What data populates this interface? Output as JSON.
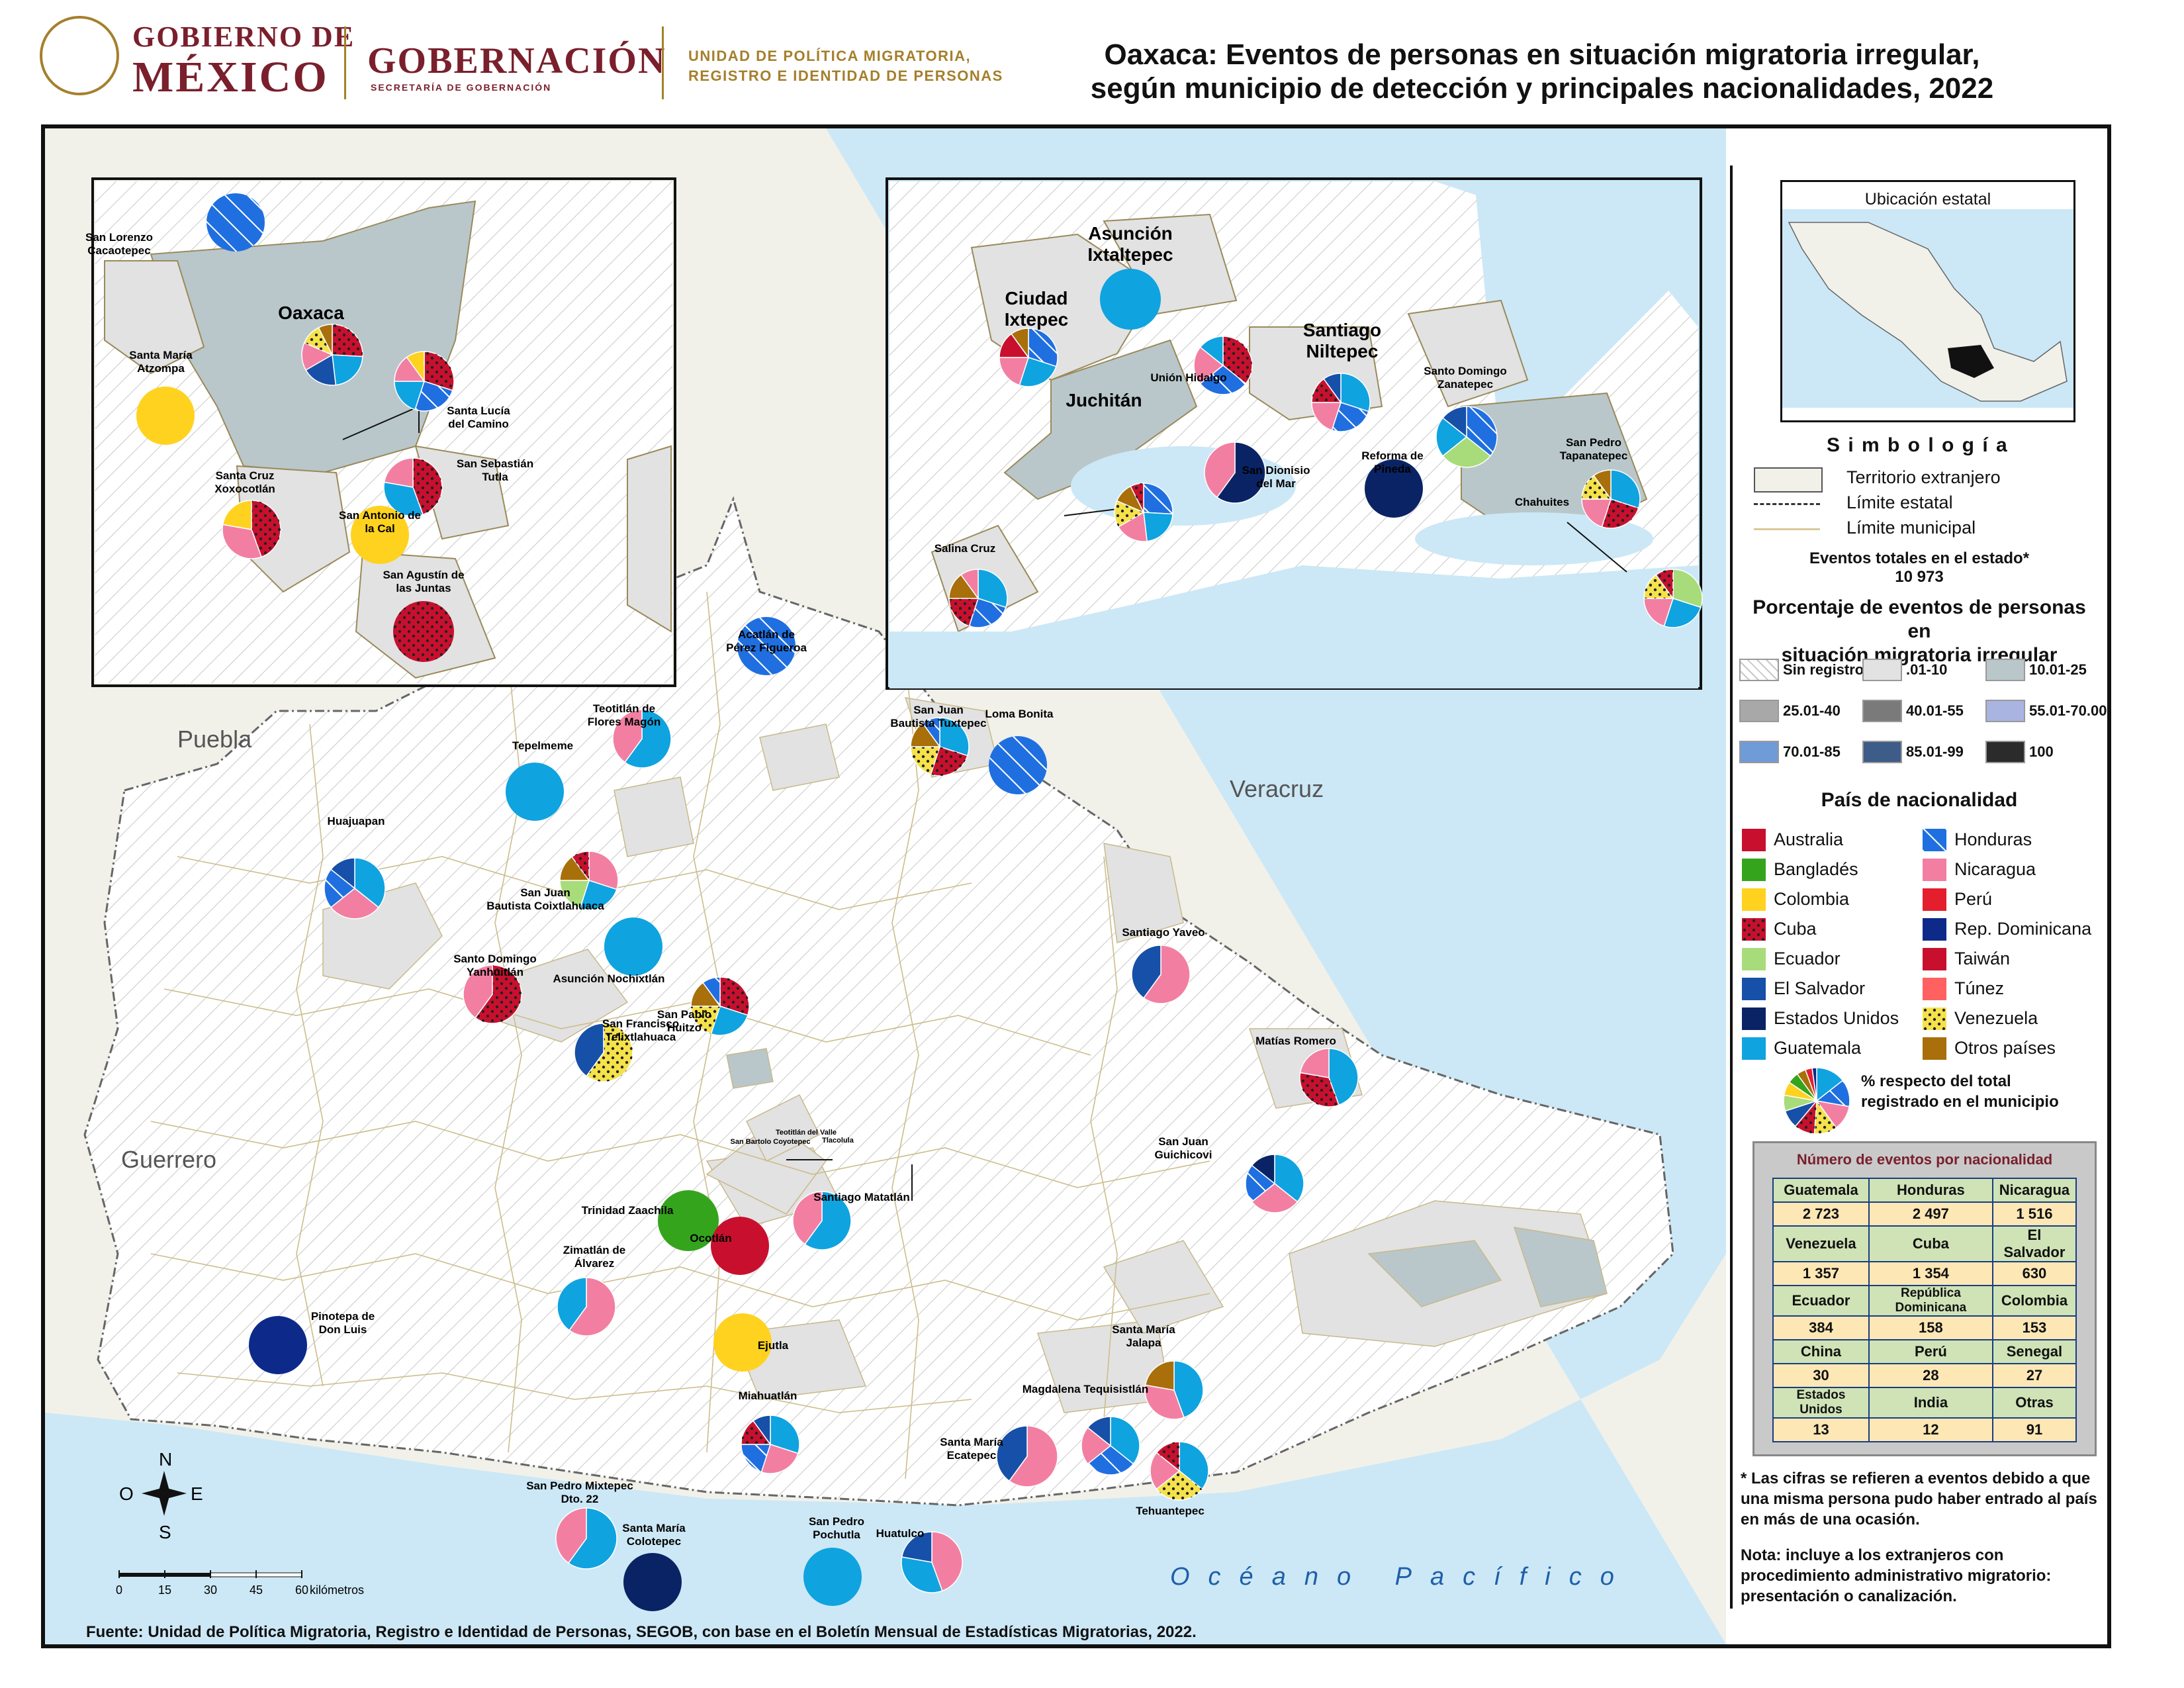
{
  "header": {
    "gov_line1": "GOBIERNO DE",
    "gov_line2": "MÉXICO",
    "gobernacion": "GOBERNACIÓN",
    "gobernacion_sub": "SECRETARÍA DE GOBERNACIÓN",
    "upm_line1": "UNIDAD DE POLÍTICA MIGRATORIA,",
    "upm_line2": "REGISTRO E IDENTIDAD DE PERSONAS",
    "title_line1": "Oaxaca: Eventos de personas en situación migratoria irregular,",
    "title_line2": "según municipio de detección y principales nacionalidades, 2022"
  },
  "colors": {
    "Guatemala": "#0fa3e0",
    "Honduras": "#1f6fe0",
    "Nicaragua": "#f27fa2",
    "Venezuela": "#f5e24a",
    "Cuba": "#c8102e",
    "El Salvador": "#1650a8",
    "Ecuador": "#a8dc7a",
    "Estados Unidos": "#0a2364",
    "Colombia": "#ffd21f",
    "Bangladés": "#35a41d",
    "Rep. Dominicana": "#0d2a8a",
    "Otros países": "#a86f0a",
    "Perú": "#e41e2d",
    "Australia": "#c8102e",
    "Taiwán": "#c8102e",
    "Túnez": "#ff6060",
    "ocean": "#cce8f6",
    "foreign": "#f1f1ea",
    "r1": "#e2e2e2",
    "r2": "#b9c7cb"
  },
  "map_labels": {
    "puebla": "Puebla",
    "veracruz": "Veracruz",
    "guerrero": "Guerrero",
    "ocean": "Océano Pacífico",
    "compass_n": "N",
    "compass_s": "S",
    "compass_e": "E",
    "compass_o": "O",
    "scale_ticks": [
      "0",
      "15",
      "30",
      "45",
      "60"
    ],
    "scale_unit": "kilómetros"
  },
  "municipalities": [
    {
      "name": "San Lorenzo Cacaotepec",
      "pie": [
        "Honduras"
      ]
    },
    {
      "name": "Oaxaca",
      "pie": [
        "Cuba",
        "Guatemala",
        "El Salvador",
        "Nicaragua",
        "Venezuela",
        "Otros países"
      ]
    },
    {
      "name": "Santa María Atzompa",
      "pie": [
        "Colombia"
      ]
    },
    {
      "name": "Santa Lucía del Camino",
      "pie": [
        "Cuba",
        "Honduras",
        "Guatemala",
        "Nicaragua",
        "Colombia"
      ]
    },
    {
      "name": "San Sebastián Tutla",
      "pie": [
        "Cuba",
        "Guatemala",
        "Nicaragua"
      ]
    },
    {
      "name": "Santa Cruz Xoxocotlán",
      "pie": [
        "Cuba",
        "Nicaragua",
        "Colombia"
      ]
    },
    {
      "name": "San Antonio de la Cal",
      "pie": [
        "Colombia"
      ]
    },
    {
      "name": "San Agustín de las Juntas",
      "pie": [
        "Cuba"
      ]
    },
    {
      "name": "Asunción Ixtaltepec",
      "pie": [
        "Guatemala"
      ]
    },
    {
      "name": "Ciudad Ixtepec",
      "pie": [
        "Honduras",
        "Guatemala",
        "Nicaragua",
        "Taiwán",
        "Otros países"
      ]
    },
    {
      "name": "Unión Hidalgo",
      "pie": [
        "Cuba",
        "Honduras",
        "Nicaragua",
        "Guatemala"
      ]
    },
    {
      "name": "Santiago Niltepec",
      "pie": [
        "Guatemala",
        "Honduras",
        "Nicaragua",
        "Cuba",
        "El Salvador"
      ]
    },
    {
      "name": "Santo Domingo Zanatepec",
      "pie": [
        "Honduras",
        "Ecuador",
        "Guatemala",
        "El Salvador"
      ]
    },
    {
      "name": "Juchitán",
      "pie": [
        "Honduras",
        "Guatemala",
        "Nicaragua",
        "Venezuela",
        "Otros países",
        "Cuba"
      ]
    },
    {
      "name": "San Dionisio del Mar",
      "pie": [
        "Estados Unidos",
        "Nicaragua"
      ]
    },
    {
      "name": "Reforma de Pineda",
      "pie": [
        "Estados Unidos"
      ]
    },
    {
      "name": "San Pedro Tapanatepec",
      "pie": [
        "Guatemala",
        "Cuba",
        "Nicaragua",
        "Venezuela",
        "Otros países"
      ]
    },
    {
      "name": "Chahuites",
      "pie": [
        "Ecuador",
        "Guatemala",
        "Nicaragua",
        "Venezuela",
        "Cuba"
      ]
    },
    {
      "name": "Salina Cruz",
      "pie": [
        "Guatemala",
        "Honduras",
        "Cuba",
        "Otros países",
        "Nicaragua"
      ]
    },
    {
      "name": "Acatlán de Pérez Figueroa",
      "pie": [
        "Honduras"
      ]
    },
    {
      "name": "Teotitlán de Flores Magón",
      "pie": [
        "Guatemala",
        "Nicaragua"
      ]
    },
    {
      "name": "San Juan Bautista Tuxtepec",
      "pie": [
        "Guatemala",
        "Cuba",
        "Venezuela",
        "Otros países",
        "Honduras"
      ]
    },
    {
      "name": "Loma Bonita",
      "pie": [
        "Honduras"
      ]
    },
    {
      "name": "Tepelmeme",
      "pie": [
        "Guatemala"
      ]
    },
    {
      "name": "Huajuapan",
      "pie": [
        "Guatemala",
        "Nicaragua",
        "Honduras",
        "El Salvador"
      ]
    },
    {
      "name": "San Juan Bautista Coixtlahuaca",
      "pie": [
        "Nicaragua",
        "Guatemala",
        "Ecuador",
        "Otros países",
        "Cuba"
      ]
    },
    {
      "name": "Santo Domingo Yanhuitlán",
      "pie": [
        "Cuba",
        "Nicaragua"
      ]
    },
    {
      "name": "Asunción Nochixtlán",
      "pie": [
        "Guatemala"
      ]
    },
    {
      "name": "San Francisco Telixtlahuaca",
      "pie": [
        "Venezuela",
        "El Salvador"
      ]
    },
    {
      "name": "San Pablo Huitzo",
      "pie": [
        "Cuba",
        "Guatemala",
        "Venezuela",
        "Otros países",
        "Honduras"
      ]
    },
    {
      "name": "Santiago Yaveo",
      "pie": [
        "Nicaragua",
        "El Salvador"
      ]
    },
    {
      "name": "Matías Romero",
      "pie": [
        "Guatemala",
        "Cuba",
        "Nicaragua"
      ]
    },
    {
      "name": "San Juan Guichicovi",
      "pie": [
        "Guatemala",
        "Nicaragua",
        "Honduras",
        "Estados Unidos"
      ]
    },
    {
      "name": "Santiago Matatlán",
      "pie": [
        "Guatemala",
        "Nicaragua"
      ]
    },
    {
      "name": "Trinidad Zaachila",
      "pie": [
        "Bangladés"
      ]
    },
    {
      "name": "Zimatlán de Álvarez",
      "pie": [
        "Nicaragua",
        "Guatemala"
      ]
    },
    {
      "name": "Ocotlán",
      "pie": [
        "Taiwán"
      ]
    },
    {
      "name": "Ejutla",
      "pie": [
        "Colombia"
      ]
    },
    {
      "name": "Pinotepa de Don Luis",
      "pie": [
        "Rep. Dominicana"
      ]
    },
    {
      "name": "Santa María Jalapa",
      "pie": [
        "Guatemala",
        "Nicaragua",
        "Otros países"
      ]
    },
    {
      "name": "Magdalena Tequisistlán",
      "pie": [
        "Guatemala",
        "Honduras",
        "Nicaragua",
        "El Salvador"
      ]
    },
    {
      "name": "Miahuatlán",
      "pie": [
        "Guatemala",
        "Nicaragua",
        "Honduras",
        "Cuba",
        "El Salvador"
      ]
    },
    {
      "name": "Santa María Ecatepec",
      "pie": [
        "Nicaragua",
        "El Salvador"
      ]
    },
    {
      "name": "Tehuantepec",
      "pie": [
        "Guatemala",
        "Venezuela",
        "Nicaragua",
        "Cuba"
      ]
    },
    {
      "name": "San Pedro Mixtepec Dto. 22",
      "pie": [
        "Guatemala",
        "Nicaragua"
      ]
    },
    {
      "name": "Santa María Colotepec",
      "pie": [
        "Estados Unidos"
      ]
    },
    {
      "name": "San Pedro Pochutla",
      "pie": [
        "Guatemala"
      ]
    },
    {
      "name": "Huatulco",
      "pie": [
        "Nicaragua",
        "Guatemala",
        "El Salvador"
      ]
    }
  ],
  "small_labels": [
    "Teotitlán del Valle",
    "Tlacolula",
    "San Bartolo Coyotepec"
  ],
  "legend": {
    "ubicacion": "Ubicación estatal",
    "simbologia": "S i m b o l o g í a",
    "territorio": "Territorio extranjero",
    "limite_estatal": "Límite estatal",
    "limite_municipal": "Límite municipal",
    "eventos_totales_label": "Eventos totales en el estado*",
    "eventos_totales_value": "10 973",
    "porcentaje_title_1": "Porcentaje de eventos de personas en",
    "porcentaje_title_2": "situación migratoria irregular",
    "ranges": [
      "Sin registro",
      ".01-10",
      "10.01-25",
      "25.01-40",
      "40.01-55",
      "55.01-70.00",
      "70.01-85",
      "85.01-99",
      "100"
    ],
    "range_colors": [
      "#ffffff",
      "#e2e2e2",
      "#b9c7cb",
      "#a8a8a8",
      "#7a7a7a",
      "#a9b4e0",
      "#6f9bd6",
      "#3d5c88",
      "#2b2b2b"
    ],
    "pais_title": "País de nacionalidad",
    "countries_left": [
      "Australia",
      "Bangladés",
      "Colombia",
      "Cuba",
      "Ecuador",
      "El Salvador",
      "Estados Unidos",
      "Guatemala"
    ],
    "countries_right": [
      "Honduras",
      "Nicaragua",
      "Perú",
      "Rep. Dominicana",
      "Taiwán",
      "Túnez",
      "Venezuela",
      "Otros países"
    ],
    "pie_note_1": "% respecto del total",
    "pie_note_2": "registrado en el municipio",
    "table_title": "Número de eventos por nacionalidad",
    "table": [
      [
        {
          "h": "Guatemala",
          "v": "2 723"
        },
        {
          "h": "Honduras",
          "v": "2 497"
        },
        {
          "h": "Nicaragua",
          "v": "1 516"
        }
      ],
      [
        {
          "h": "Venezuela",
          "v": "1 357"
        },
        {
          "h": "Cuba",
          "v": "1 354"
        },
        {
          "h": "El Salvador",
          "v": "630"
        }
      ],
      [
        {
          "h": "Ecuador",
          "v": "384"
        },
        {
          "h": "República Dominicana",
          "v": "158"
        },
        {
          "h": "Colombia",
          "v": "153"
        }
      ],
      [
        {
          "h": "China",
          "v": "30"
        },
        {
          "h": "Perú",
          "v": "28"
        },
        {
          "h": "Senegal",
          "v": "27"
        }
      ],
      [
        {
          "h": "Estados Unidos",
          "v": "13"
        },
        {
          "h": "India",
          "v": "12"
        },
        {
          "h": "Otras",
          "v": "91"
        }
      ]
    ],
    "note1": "* Las cifras se refieren a eventos debido a que una misma persona pudo haber entrado al país en más de una ocasión.",
    "note2": "Nota: incluye a los extranjeros con procedimiento administrativo migratorio: presentación o canalización."
  },
  "source": "Fuente: Unidad de Política Migratoria, Registro e Identidad de Personas, SEGOB, con base en el Boletín Mensual de Estadísticas Migratorias, 2022."
}
